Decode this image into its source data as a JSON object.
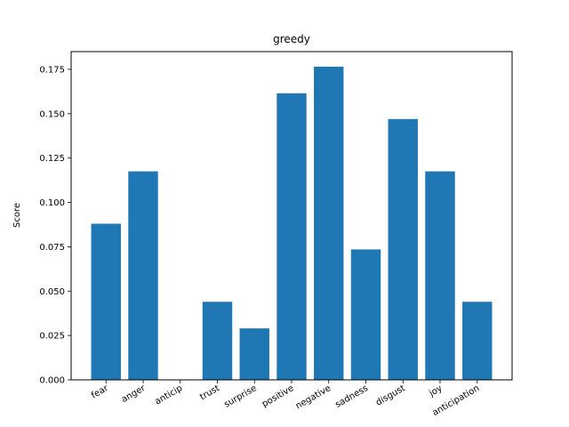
{
  "chart_data": {
    "type": "bar",
    "title": "greedy",
    "xlabel": "",
    "ylabel": "Score",
    "categories": [
      "fear",
      "anger",
      "anticip",
      "trust",
      "surprise",
      "positive",
      "negative",
      "sadness",
      "disgust",
      "joy",
      "anticipation"
    ],
    "values": [
      0.088,
      0.1175,
      0.0,
      0.044,
      0.029,
      0.1615,
      0.1765,
      0.0735,
      0.147,
      0.1175,
      0.044
    ],
    "ylim": [
      0,
      0.185
    ],
    "yticks": [
      "0.000",
      "0.025",
      "0.050",
      "0.075",
      "0.100",
      "0.125",
      "0.150",
      "0.175"
    ],
    "grid": false,
    "legend": "none",
    "bar_color": "#1f77b4"
  }
}
